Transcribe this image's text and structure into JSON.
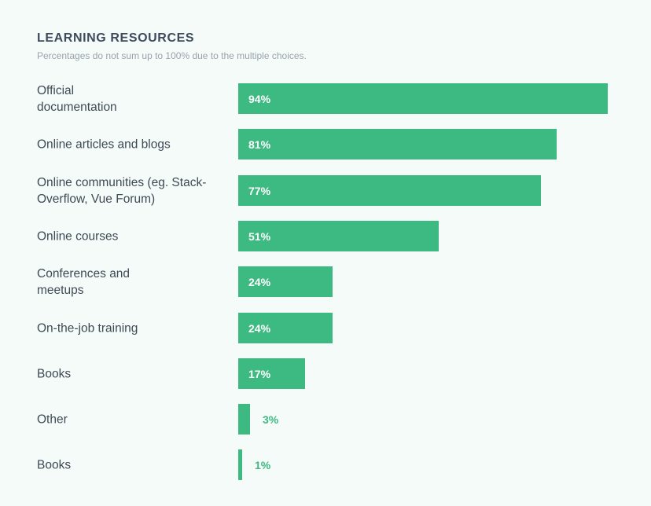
{
  "chart_data": {
    "type": "bar",
    "orientation": "horizontal",
    "title": "LEARNING RESOURCES",
    "subtitle": "Percentages do not sum up to 100% due to the multiple choices.",
    "categories": [
      "Official\ndocumentation",
      "Online articles and blogs",
      "Online communities (eg. Stack-\nOverflow, Vue Forum)",
      "Online courses",
      "Conferences and\nmeetups",
      "On-the-job training",
      "Books",
      "Other",
      "Books"
    ],
    "values": [
      94,
      81,
      77,
      51,
      24,
      24,
      17,
      3,
      1
    ],
    "value_labels": [
      "94%",
      "81%",
      "77%",
      "51%",
      "24%",
      "24%",
      "17%",
      "3%",
      "1%"
    ],
    "xlim": [
      0,
      100
    ],
    "unit": "%",
    "grid": false,
    "color": "#3dba81"
  }
}
